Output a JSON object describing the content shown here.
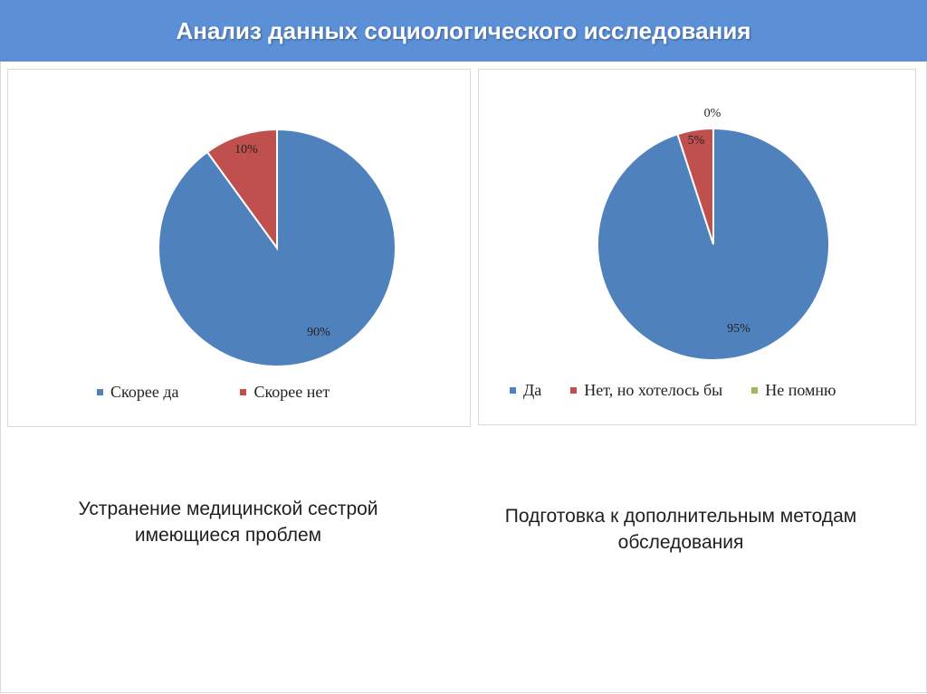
{
  "slide": {
    "title": "Анализ данных социологического исследования",
    "title_bar_color": "#5b8fd6"
  },
  "chart_data": [
    {
      "type": "pie",
      "categories": [
        "Скорее да",
        "Скорее нет"
      ],
      "values": [
        90,
        10
      ],
      "labels": [
        "90%",
        "10%"
      ],
      "colors": [
        "#4f81bd",
        "#c0504d"
      ],
      "legend_position": "bottom"
    },
    {
      "type": "pie",
      "categories": [
        "Да",
        "Нет, но хотелось бы",
        "Не помню"
      ],
      "values": [
        95,
        5,
        0
      ],
      "labels": [
        "95%",
        "5%",
        "0%"
      ],
      "colors": [
        "#4f81bd",
        "#c0504d",
        "#9bbb59"
      ],
      "legend_position": "bottom"
    }
  ],
  "captions": {
    "left": "Устранение  медицинской сестрой имеющиеся проблем",
    "right": "Подготовка к дополнительным методам обследования"
  }
}
